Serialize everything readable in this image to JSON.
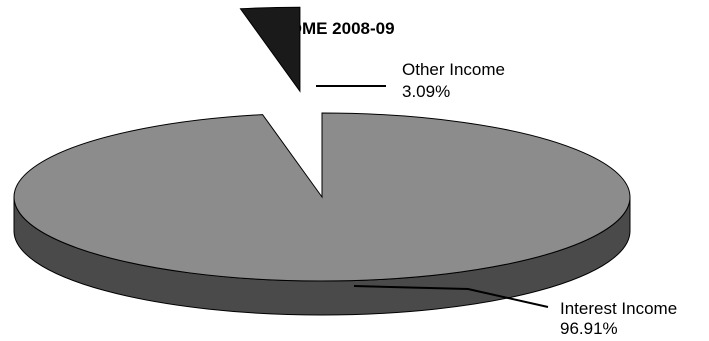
{
  "chart_data": {
    "type": "pie",
    "style": "3d-exploded",
    "title": "INCOME 2008-09",
    "slices": [
      {
        "label": "Interest Income",
        "value": 96.91,
        "display": "96.91%",
        "color": "#8c8c8c",
        "side_color": "#4a4a4a"
      },
      {
        "label": "Other Income",
        "value": 3.09,
        "display": "3.09%",
        "color": "#1a1a1a",
        "side_color": "#000000",
        "exploded": true
      }
    ],
    "legend": "none",
    "leader_lines": true
  }
}
